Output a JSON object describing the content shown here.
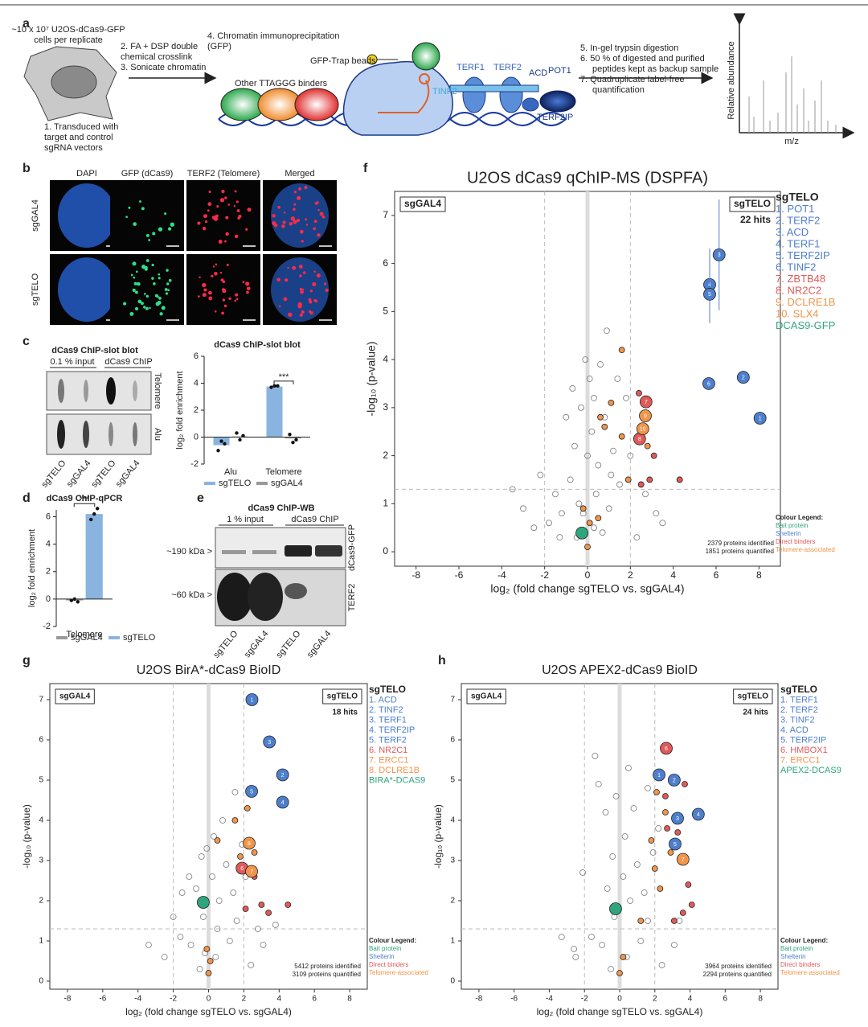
{
  "panel_labels": {
    "a": "a",
    "b": "b",
    "c": "c",
    "d": "d",
    "e": "e",
    "f": "f",
    "g": "g",
    "h": "h"
  },
  "panel_a": {
    "cells": [
      "~10 x 10⁷ U2OS-dCas9-GFP",
      "cells per replicate"
    ],
    "step1": [
      "1. Transduced with",
      "target and control",
      "sgRNA vectors"
    ],
    "steps23": [
      "2. FA + DSP double",
      "chemical crosslink",
      "3. Sonicate chromatin"
    ],
    "step4": [
      "4. Chromatin immunoprecipitation",
      "(GFP)"
    ],
    "beads": "GFP-Trap beads",
    "binders": "Other TTAGGG binders",
    "proteins": {
      "terf1": "TERF1",
      "terf2": "TERF2",
      "tinf2": "TINF2",
      "acd": "ACD",
      "pot1": "POT1",
      "terf2ip": "TERF2IP"
    },
    "steps567": [
      "5. In-gel trypsin digestion",
      "6. 50 % of digested and purified",
      "peptides kept as backup sample",
      "7. Quadruplicate label-free",
      "quantification"
    ],
    "ylabel": "Relative abundance",
    "xlabel": "m/z"
  },
  "panel_b": {
    "columns": [
      "DAPI",
      "GFP (dCas9)",
      "TERF2 (Telomere)",
      "Merged"
    ],
    "rows": [
      "sgGAL4",
      "sgTELO"
    ]
  },
  "panel_c_blot": {
    "title": "dCas9 ChIP-slot blot",
    "groups": [
      "0.1 % input",
      "dCas9 ChIP"
    ],
    "rows": [
      "Telomere",
      "Alu"
    ],
    "lanes": [
      "sgTELO",
      "sgGAL4",
      "sgTELO",
      "sgGAL4"
    ]
  },
  "panel_e": {
    "title": "dCas9 ChIP-WB",
    "groups": [
      "1 % input",
      "dCas9 ChIP"
    ],
    "sizes": [
      "~190 kDa >",
      "~60 kDa >"
    ],
    "rows": [
      "dCas9-GFP",
      "TERF2"
    ],
    "lanes": [
      "sgTELO",
      "sgGAL4",
      "sgTELO",
      "sgGAL4"
    ]
  },
  "chart_data": [
    {
      "type": "bar",
      "title": "dCas9 ChIP-slot blot",
      "ylabel": "log₂ fold enrichment",
      "categories": [
        "Alu",
        "Telomere"
      ],
      "ylim": [
        -2,
        6
      ],
      "yticks": [
        -2,
        0,
        2,
        4,
        6
      ],
      "significance": "***",
      "series": [
        {
          "name": "sgTELO",
          "color": "#8ab4e0",
          "values": [
            -0.6,
            3.75
          ],
          "replicates": [
            [
              -1.0,
              -0.3,
              -0.5
            ],
            [
              3.7,
              3.8,
              3.8
            ]
          ]
        },
        {
          "name": "sgGAL4",
          "color": "#999999",
          "values": [
            0.05,
            -0.1
          ],
          "replicates": [
            [
              0.3,
              -0.2,
              0.1
            ],
            [
              0.2,
              -0.4,
              -0.2
            ]
          ]
        }
      ]
    },
    {
      "type": "bar",
      "title": "dCas9 ChIP-qPCR",
      "ylabel": "log₂ fold enrichment",
      "categories": [
        "Telomere"
      ],
      "ylim": [
        -2,
        6.5
      ],
      "yticks": [
        -2,
        0,
        2,
        4,
        6
      ],
      "significance": "***",
      "series": [
        {
          "name": "sgGAL4",
          "color": "#999999",
          "values": [
            -0.1
          ],
          "replicates": [
            [
              -0.1,
              0,
              -0.2
            ]
          ]
        },
        {
          "name": "sgTELO",
          "color": "#8ab4e0",
          "values": [
            6.2
          ],
          "replicates": [
            [
              5.8,
              6.2,
              6.6
            ]
          ]
        }
      ]
    },
    {
      "type": "scatter",
      "title": "U2OS dCas9 qChIP-MS (DSPFA)",
      "xlabel": "log₂ (fold change sgTELO vs. sgGAL4)",
      "ylabel": "-log₁₀ (p-value)",
      "xlim": [
        -9,
        9
      ],
      "ylim": [
        -0.3,
        7.5
      ],
      "xticks": [
        -8,
        -6,
        -4,
        -2,
        0,
        2,
        4,
        6,
        8
      ],
      "yticks": [
        0,
        1,
        2,
        3,
        4,
        5,
        6,
        7
      ],
      "threshold_x": [
        -2,
        2
      ],
      "threshold_y": 1.3,
      "left_box": "sgGAL4",
      "right_box": "sgTELO",
      "hits": "22 hits",
      "legend_title": "sgTELO",
      "legend_items": [
        {
          "text": "1. POT1",
          "color": "#4e7fcc"
        },
        {
          "text": "2. TERF2",
          "color": "#4e7fcc"
        },
        {
          "text": "3. ACD",
          "color": "#4e7fcc"
        },
        {
          "text": "4. TERF1",
          "color": "#4e7fcc"
        },
        {
          "text": "5. TERF2IP",
          "color": "#4e7fcc"
        },
        {
          "text": "6. TINF2",
          "color": "#4e7fcc"
        },
        {
          "text": "7. ZBTB48",
          "color": "#e05a5a"
        },
        {
          "text": "8. NR2C2",
          "color": "#e05a5a"
        },
        {
          "text": "9. DCLRE1B",
          "color": "#f0954a"
        },
        {
          "text": "10. SLX4",
          "color": "#f0954a"
        },
        {
          "text": "DCAS9-GFP",
          "color": "#2fa57d"
        }
      ],
      "counts": [
        "2379 proteins identified",
        "1851 proteins quantified"
      ],
      "colour_legend_title": "Colour Legend:",
      "background": {
        "color": "#777777",
        "x": [
          -0.5,
          0.3,
          -1.2,
          1.0,
          -0.8,
          0.5,
          -1.5,
          1.5,
          0.2,
          -0.3,
          0.8,
          -0.6,
          1.2,
          0.1,
          0.6,
          2.3,
          -2.5,
          3.2,
          -3,
          0.9,
          -0.1,
          1.8,
          -1.0,
          0.4,
          -0.2,
          2.7,
          -2.2,
          4.3,
          -3.5,
          1.4,
          0.0,
          -0.4,
          0.7,
          -1.8,
          2.0,
          0.3,
          -0.7,
          1.1,
          -1.3,
          3.5
        ],
        "y": [
          0.3,
          0.5,
          0.8,
          0.9,
          1.5,
          1.8,
          1.2,
          1.4,
          2.5,
          3.0,
          2.8,
          2.2,
          2.1,
          3.6,
          3.9,
          0.3,
          0.5,
          0.8,
          0.9,
          4.6,
          4.0,
          3.2,
          2.8,
          1.2,
          0.8,
          1.2,
          1.6,
          1.5,
          1.3,
          3.6,
          2.0,
          1.0,
          0.4,
          0.6,
          2.0,
          3.2,
          3.4,
          1.6,
          0.3,
          0.6
        ]
      },
      "series": [
        {
          "name": "Bait protein",
          "color": "#2fa57d",
          "x": [
            -0.26
          ],
          "y": [
            0.39
          ],
          "labels": [
            null
          ]
        },
        {
          "name": "Shelterin",
          "color": "#4e7fcc",
          "x": [
            8.05,
            7.27,
            6.14,
            5.7,
            5.7,
            5.66
          ],
          "y": [
            2.78,
            3.63,
            6.18,
            5.56,
            5.36,
            3.5
          ],
          "labels": [
            "1",
            "2",
            "3",
            "4",
            "5",
            "6"
          ],
          "errors": [
            null,
            0.1,
            1.15,
            0.75,
            0.6,
            null
          ]
        },
        {
          "name": "Direct binders",
          "color": "#e05a5a",
          "x": [
            2.73,
            2.43,
            2.5,
            2.9,
            4.3,
            2.4,
            3.1
          ],
          "y": [
            3.12,
            2.35,
            1.4,
            1.5,
            1.5,
            3.3,
            2.0
          ],
          "labels": [
            "7",
            "8",
            null,
            null,
            null,
            null,
            null
          ]
        },
        {
          "name": "Telomere-associated",
          "color": "#f0954a",
          "x": [
            2.7,
            2.58,
            1.6,
            1.1,
            0.8,
            1.6,
            2.8,
            1.9,
            -0.2,
            0.1,
            0.0,
            0.5,
            0.6
          ],
          "y": [
            2.83,
            2.56,
            4.2,
            3.1,
            2.6,
            2.4,
            2.2,
            1.5,
            0.9,
            0.6,
            0.1,
            0.7,
            2.8
          ],
          "labels": [
            "9",
            "10",
            null,
            null,
            null,
            null,
            null,
            null,
            null,
            null,
            null,
            null,
            null
          ]
        }
      ]
    },
    {
      "type": "scatter",
      "title": "U2OS BirA*-dCas9 BioID",
      "xlabel": "log₂ (fold change sgTELO vs. sgGAL4)",
      "ylabel": "-log₁₀ (p-value)",
      "xlim": [
        -9,
        9
      ],
      "ylim": [
        -0.2,
        7.4
      ],
      "xticks": [
        -8,
        -6,
        -4,
        -2,
        0,
        2,
        4,
        6,
        8
      ],
      "yticks": [
        0,
        1,
        2,
        3,
        4,
        5,
        6,
        7
      ],
      "threshold_x": [
        -2,
        2
      ],
      "threshold_y": 1.3,
      "left_box": "sgGAL4",
      "right_box": "sgTELO",
      "hits": "18 hits",
      "legend_title": "sgTELO",
      "legend_items": [
        {
          "text": "1. ACD",
          "color": "#4e7fcc"
        },
        {
          "text": "2. TINF2",
          "color": "#4e7fcc"
        },
        {
          "text": "3. TERF1",
          "color": "#4e7fcc"
        },
        {
          "text": "4. TERF2IP",
          "color": "#4e7fcc"
        },
        {
          "text": "5. TERF2",
          "color": "#4e7fcc"
        },
        {
          "text": "6. NR2C1",
          "color": "#e05a5a"
        },
        {
          "text": "7. ERCC1",
          "color": "#f0954a"
        },
        {
          "text": "8. DCLRE1B",
          "color": "#f0954a"
        },
        {
          "text": "BIRA*-DCAS9",
          "color": "#2fa57d"
        }
      ],
      "counts": [
        "5412 proteins identified",
        "3109 proteins quantified"
      ],
      "colour_legend_title": "Colour Legend:",
      "background": {
        "color": "#777777",
        "x": [
          -0.5,
          0.4,
          -1.0,
          1.2,
          -0.3,
          0.6,
          -1.6,
          1.6,
          0.2,
          -0.4,
          1.0,
          -0.7,
          1.4,
          0.3,
          0.8,
          2.4,
          -2.5,
          3.1,
          -3.4,
          1.5,
          -0.1,
          1.9,
          -1.1,
          0.5,
          -0.2,
          2.8,
          -2.0,
          3.8,
          -1.5,
          2.1
        ],
        "y": [
          0.3,
          0.6,
          0.9,
          1.0,
          1.6,
          2.0,
          1.1,
          1.5,
          2.6,
          3.1,
          2.9,
          2.3,
          2.2,
          3.6,
          4.0,
          0.4,
          0.6,
          0.9,
          0.9,
          4.7,
          3.3,
          3.4,
          2.6,
          1.3,
          0.7,
          1.3,
          1.6,
          1.4,
          2.2,
          2.6
        ]
      },
      "series": [
        {
          "name": "Bait protein",
          "color": "#2fa57d",
          "x": [
            -0.3
          ],
          "y": [
            1.96
          ],
          "labels": [
            null
          ]
        },
        {
          "name": "Shelterin",
          "color": "#4e7fcc",
          "x": [
            2.46,
            3.45,
            4.2,
            2.44,
            4.2
          ],
          "y": [
            7.0,
            5.95,
            5.13,
            4.72,
            4.45
          ],
          "labels": [
            "1",
            "3",
            "2",
            "5",
            "4"
          ]
        },
        {
          "name": "Direct binders",
          "color": "#e05a5a",
          "x": [
            1.9,
            3.4,
            4.5,
            2.6,
            3.0,
            2.1
          ],
          "y": [
            2.81,
            1.7,
            1.9,
            2.6,
            1.9,
            1.8
          ],
          "labels": [
            "6",
            null,
            null,
            null,
            null,
            null
          ]
        },
        {
          "name": "Telomere-associated",
          "color": "#f0954a",
          "x": [
            2.3,
            2.44,
            2.2,
            1.5,
            0.5,
            1.8,
            2.6,
            0.0,
            0.1,
            -0.1
          ],
          "y": [
            3.43,
            2.73,
            4.3,
            4.0,
            3.5,
            3.1,
            3.2,
            0.2,
            0.5,
            0.8
          ],
          "labels": [
            "8",
            "7",
            null,
            null,
            null,
            null,
            null,
            null,
            null,
            null
          ]
        }
      ]
    },
    {
      "type": "scatter",
      "title": "U2OS APEX2-dCas9 BioID",
      "xlabel": "log₂ (fold change sgTELO vs. sgGAL4)",
      "ylabel": "-log₁₀ (p-value)",
      "xlim": [
        -9,
        9
      ],
      "ylim": [
        -0.2,
        7.4
      ],
      "xticks": [
        -8,
        -6,
        -4,
        -2,
        0,
        2,
        4,
        6,
        8
      ],
      "yticks": [
        0,
        1,
        2,
        3,
        4,
        5,
        6,
        7
      ],
      "threshold_x": [
        -2,
        2
      ],
      "threshold_y": 1.3,
      "left_box": "sgGAL4",
      "right_box": "sgTELO",
      "hits": "24 hits",
      "legend_title": "sgTELO",
      "legend_items": [
        {
          "text": "1. TERF1",
          "color": "#4e7fcc"
        },
        {
          "text": "2. TERF2",
          "color": "#4e7fcc"
        },
        {
          "text": "3. TINF2",
          "color": "#4e7fcc"
        },
        {
          "text": "4. ACD",
          "color": "#4e7fcc"
        },
        {
          "text": "5. TERF2IP",
          "color": "#4e7fcc"
        },
        {
          "text": "6. HMBOX1",
          "color": "#e05a5a"
        },
        {
          "text": "7. ERCC1",
          "color": "#f0954a"
        },
        {
          "text": "APEX2-DCAS9",
          "color": "#2fa57d"
        }
      ],
      "counts": [
        "3964 proteins identified",
        "2294 proteins quantified"
      ],
      "colour_legend_title": "Colour Legend:",
      "background": {
        "color": "#777777",
        "x": [
          -0.5,
          0.4,
          -1.0,
          1.2,
          -0.3,
          0.6,
          -1.6,
          1.6,
          0.2,
          -0.4,
          1.0,
          -0.7,
          1.4,
          0.3,
          0.8,
          2.4,
          -2.5,
          3.1,
          -3.3,
          1.6,
          -1.4,
          -1.2,
          0.5,
          -0.8,
          2.2,
          -2.6,
          3.4,
          -2.1,
          1.9,
          -0.2
        ],
        "y": [
          0.3,
          0.6,
          0.9,
          1.0,
          1.6,
          2.0,
          1.1,
          1.5,
          2.6,
          3.1,
          2.9,
          2.3,
          2.2,
          3.6,
          4.3,
          0.4,
          0.6,
          0.9,
          1.1,
          4.8,
          5.6,
          4.9,
          5.3,
          4.2,
          3.8,
          0.8,
          1.5,
          2.7,
          3.2,
          4.6
        ]
      },
      "series": [
        {
          "name": "Bait protein",
          "color": "#2fa57d",
          "x": [
            -0.23
          ],
          "y": [
            1.8
          ],
          "labels": [
            null
          ]
        },
        {
          "name": "Shelterin",
          "color": "#4e7fcc",
          "x": [
            2.24,
            3.1,
            4.47,
            3.29,
            3.15
          ],
          "y": [
            5.13,
            5.0,
            4.15,
            4.05,
            3.41
          ],
          "labels": [
            "1",
            "2",
            "4",
            "3",
            "5"
          ]
        },
        {
          "name": "Direct binders",
          "color": "#e05a5a",
          "x": [
            2.65,
            2.6,
            3.7,
            3.3,
            3.9,
            3.6,
            4.1,
            3.1,
            2.7
          ],
          "y": [
            5.79,
            4.6,
            4.9,
            3.7,
            2.4,
            1.7,
            1.9,
            1.5,
            3.8
          ],
          "labels": [
            "6",
            null,
            null,
            null,
            null,
            null,
            null,
            null,
            null
          ]
        },
        {
          "name": "Telomere-associated",
          "color": "#f0954a",
          "x": [
            3.6,
            2.1,
            2.6,
            1.8,
            2.0,
            2.9,
            1.2,
            0.0,
            0.2,
            2.3
          ],
          "y": [
            3.03,
            4.7,
            4.2,
            3.5,
            2.8,
            3.2,
            1.5,
            0.2,
            0.6,
            2.3
          ],
          "labels": [
            "7",
            null,
            null,
            null,
            null,
            null,
            null,
            null,
            null,
            null
          ]
        }
      ]
    }
  ]
}
